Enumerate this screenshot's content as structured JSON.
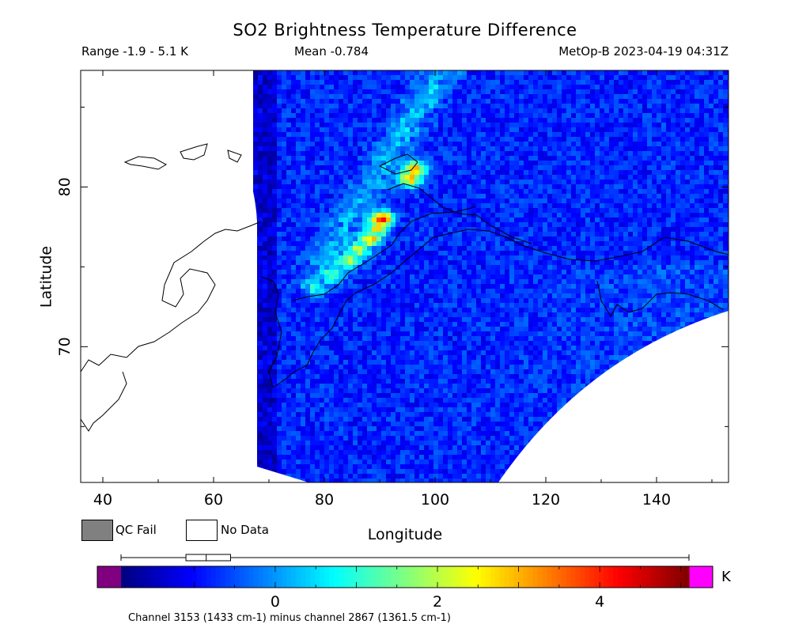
{
  "header": {
    "title": "SO2 Brightness Temperature Difference",
    "range": "Range -1.9 - 5.1 K",
    "mean": "Mean -0.784",
    "satellite_time": "MetOp-B 2023-04-19 04:31Z"
  },
  "legend": {
    "qc_fail": "QC Fail",
    "no_data": "No Data",
    "qc_fail_color": "#808080",
    "no_data_color": "#ffffff"
  },
  "colorbar": {
    "min": -1.9,
    "max": 5.1,
    "ticks": [
      "0",
      "2",
      "4"
    ],
    "tick_values": [
      0,
      2,
      4
    ],
    "unit": "K",
    "under_color": "#800080",
    "over_color": "#ff00ff",
    "colors": [
      "#00007f",
      "#0000ff",
      "#0080ff",
      "#00ffff",
      "#80ff80",
      "#ffff00",
      "#ff8000",
      "#ff0000",
      "#7f0000"
    ],
    "boxplot": {
      "min": -1.9,
      "q1": -1.1,
      "median": -0.85,
      "q3": -0.55,
      "max": 5.1
    }
  },
  "footer": {
    "note": "Channel 3153 (1433 cm-1) minus channel 2867 (1361.5 cm-1)"
  },
  "chart_data": {
    "type": "heatmap",
    "title": "SO2 Brightness Temperature Difference",
    "xlabel": "Longitude",
    "ylabel": "Latitude",
    "xlim": [
      36,
      153
    ],
    "ylim": [
      61.5,
      87.3
    ],
    "xticks": [
      40,
      60,
      80,
      100,
      120,
      140
    ],
    "yticks": [
      70,
      80
    ],
    "value_range": [
      -1.9,
      5.1
    ],
    "mean": -0.784,
    "units": "K",
    "background_value": -0.8,
    "plume": {
      "description_values": [
        {
          "lon": 96,
          "lat": 81.2,
          "value": 3.5
        },
        {
          "lon": 95,
          "lat": 80.7,
          "value": 3.8
        },
        {
          "lon": 90,
          "lat": 78.1,
          "value": 5.1
        },
        {
          "lon": 89,
          "lat": 77.5,
          "value": 2.8
        },
        {
          "lon": 88,
          "lat": 76.9,
          "value": 3.2
        },
        {
          "lon": 86,
          "lat": 76.2,
          "value": 2.6
        },
        {
          "lon": 84,
          "lat": 75.5,
          "value": 2.2
        },
        {
          "lon": 81,
          "lat": 74.6,
          "value": 1.5
        },
        {
          "lon": 78,
          "lat": 73.8,
          "value": 1.0
        }
      ]
    }
  }
}
